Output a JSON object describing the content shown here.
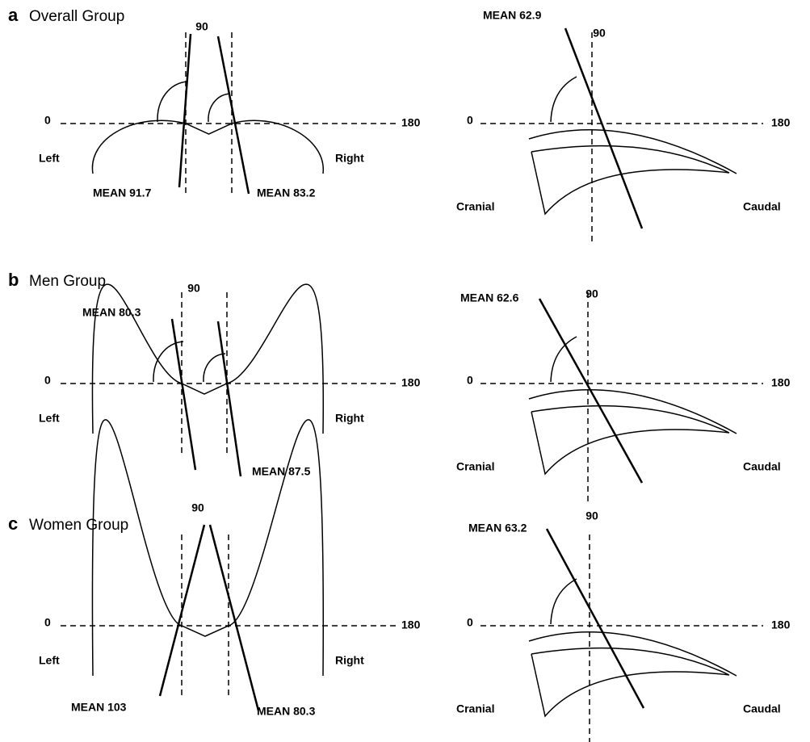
{
  "panels": [
    {
      "letter": "a",
      "title": "Overall Group",
      "left": {
        "zero": "0",
        "ninety": "90",
        "one_eighty": "180",
        "left": "Left",
        "right": "Right",
        "means": [
          "MEAN 91.7",
          "MEAN 83.2"
        ]
      },
      "right": {
        "mean": "MEAN 62.9",
        "ninety": "90",
        "zero": "0",
        "one_eighty": "180",
        "cranial": "Cranial",
        "caudal": "Caudal"
      }
    },
    {
      "letter": "b",
      "title": "Men Group",
      "left": {
        "zero": "0",
        "ninety": "90",
        "one_eighty": "180",
        "left": "Left",
        "right": "Right",
        "means": [
          "MEAN 80.3",
          "MEAN 87.5"
        ]
      },
      "right": {
        "mean": "MEAN 62.6",
        "ninety": "90",
        "zero": "0",
        "one_eighty": "180",
        "cranial": "Cranial",
        "caudal": "Caudal"
      }
    },
    {
      "letter": "c",
      "title": "Women Group",
      "left": {
        "zero": "0",
        "ninety": "90",
        "one_eighty": "180",
        "left": "Left",
        "right": "Right",
        "means": [
          "MEAN 103",
          "MEAN 80.3"
        ]
      },
      "right": {
        "mean": "MEAN 63.2",
        "ninety": "90",
        "zero": "0",
        "one_eighty": "180",
        "cranial": "Cranial",
        "caudal": "Caudal"
      }
    }
  ]
}
